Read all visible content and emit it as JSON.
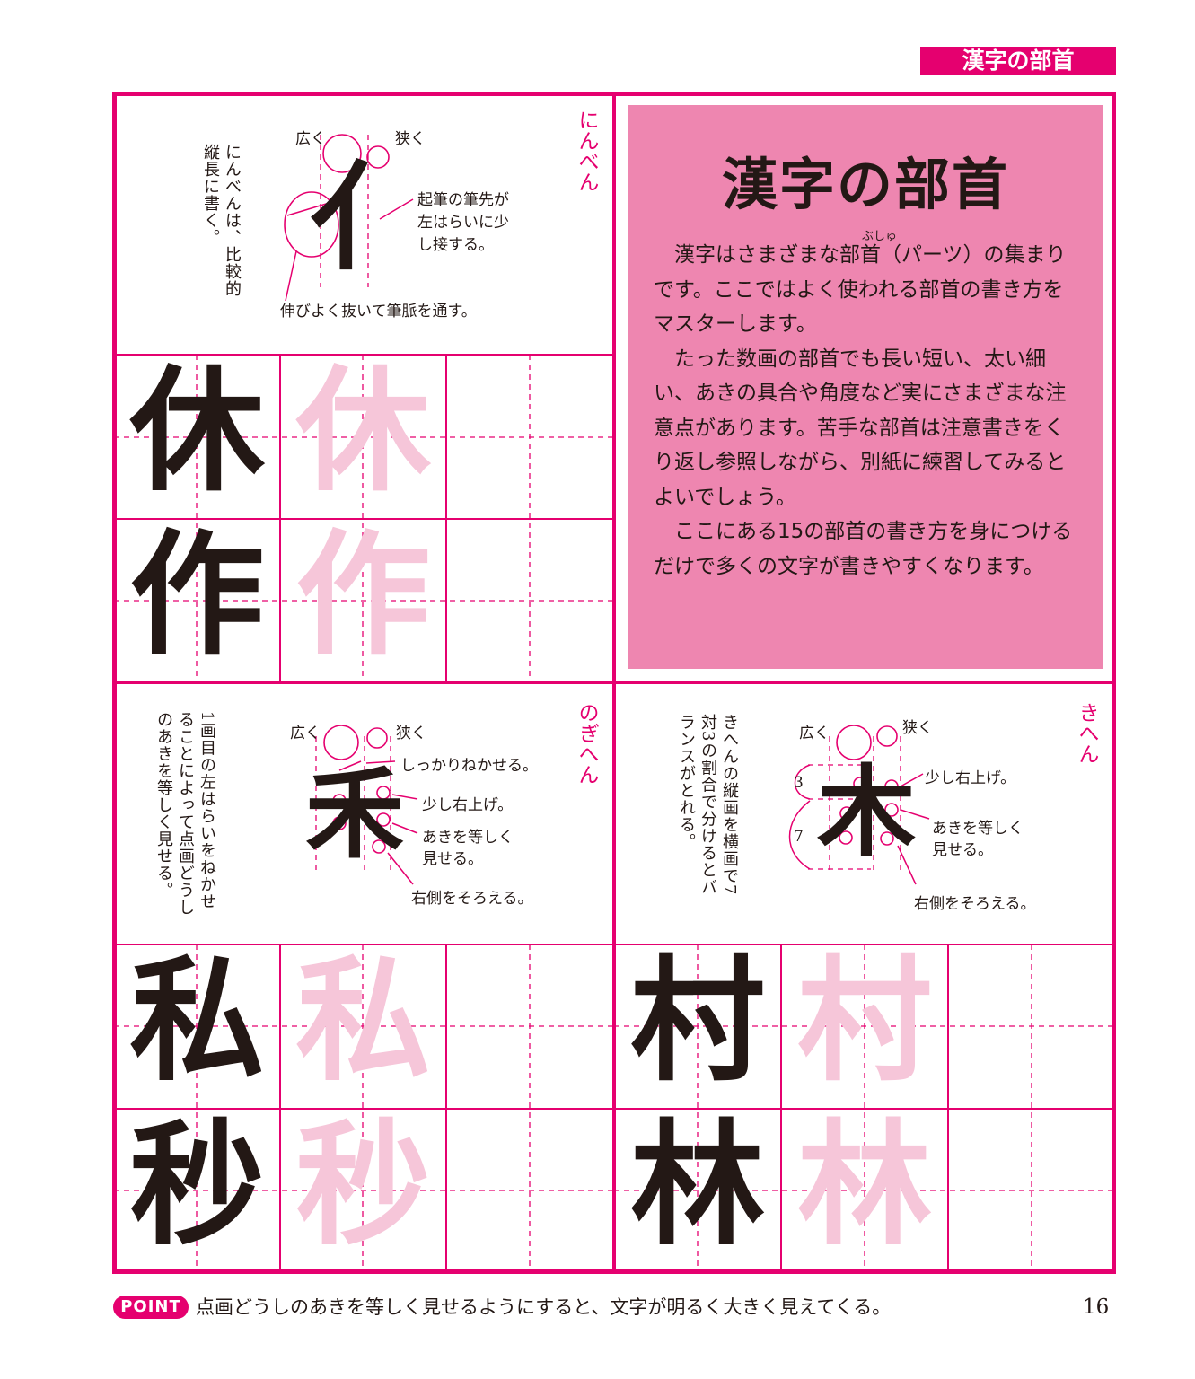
{
  "header": {
    "tab_label": "漢字の部首"
  },
  "intro": {
    "title": "漢字の部首",
    "ruby": "ぶしゅ",
    "paragraphs": [
      "漢字はさまざまな部首（パーツ）の集まりです。ここではよく使われる部首の書き方をマスターします。",
      "たった数画の部首でも長い短い、太い細い、あきの具合や角度など実にさまざまな注意点があります。苦手な部首は注意書きをくり返し参照しながら、別紙に練習してみるとよいでしょう。",
      "ここにある15の部首の書き方を身につけるだけで多くの文字が書きやすくなります。"
    ]
  },
  "sections": {
    "ninben": {
      "label": "にんべん",
      "radical": "亻",
      "side_note": "にんべんは、比較的縦長に書く。",
      "notes": {
        "wide": "広く",
        "narrow": "狭く",
        "n1": "起筆の筆先が",
        "n2": "左はらいに少",
        "n3": "し接する。",
        "bottom": "伸びよく抜いて筆脈を通す。"
      },
      "practice": [
        "休",
        "作"
      ]
    },
    "nogihen": {
      "label": "のぎへん",
      "radical": "禾",
      "side_note": "1画目の左はらいをねかせることによって点画どうしのあきを等しく見せる。",
      "notes": {
        "wide": "広く",
        "narrow": "狭く",
        "n1": "しっかりねかせる。",
        "n2": "少し右上げ。",
        "n3": "あきを等しく",
        "n4": "見せる。",
        "n5": "右側をそろえる。"
      },
      "practice": [
        "私",
        "秒"
      ]
    },
    "kihen": {
      "label": "きへん",
      "radical": "木",
      "side_note": "きへんの縦画を横画で7対3の割合で分けるとバランスがとれる。",
      "notes": {
        "wide": "広く",
        "narrow": "狭く",
        "n1": "少し右上げ。",
        "n2": "あきを等しく",
        "n3": "見せる。",
        "n4": "右側をそろえる。",
        "r3": "3",
        "r7": "7"
      },
      "practice": [
        "村",
        "林"
      ]
    }
  },
  "footer": {
    "badge": "POINT",
    "text": "点画どうしのあきを等しく見せるようにすると、文字が明るく大きく見えてくる。",
    "page": "16"
  },
  "colors": {
    "accent": "#e5006f",
    "intro_bg": "#ee86b0",
    "ghost": "#f6c6d9",
    "ink": "#231815"
  }
}
